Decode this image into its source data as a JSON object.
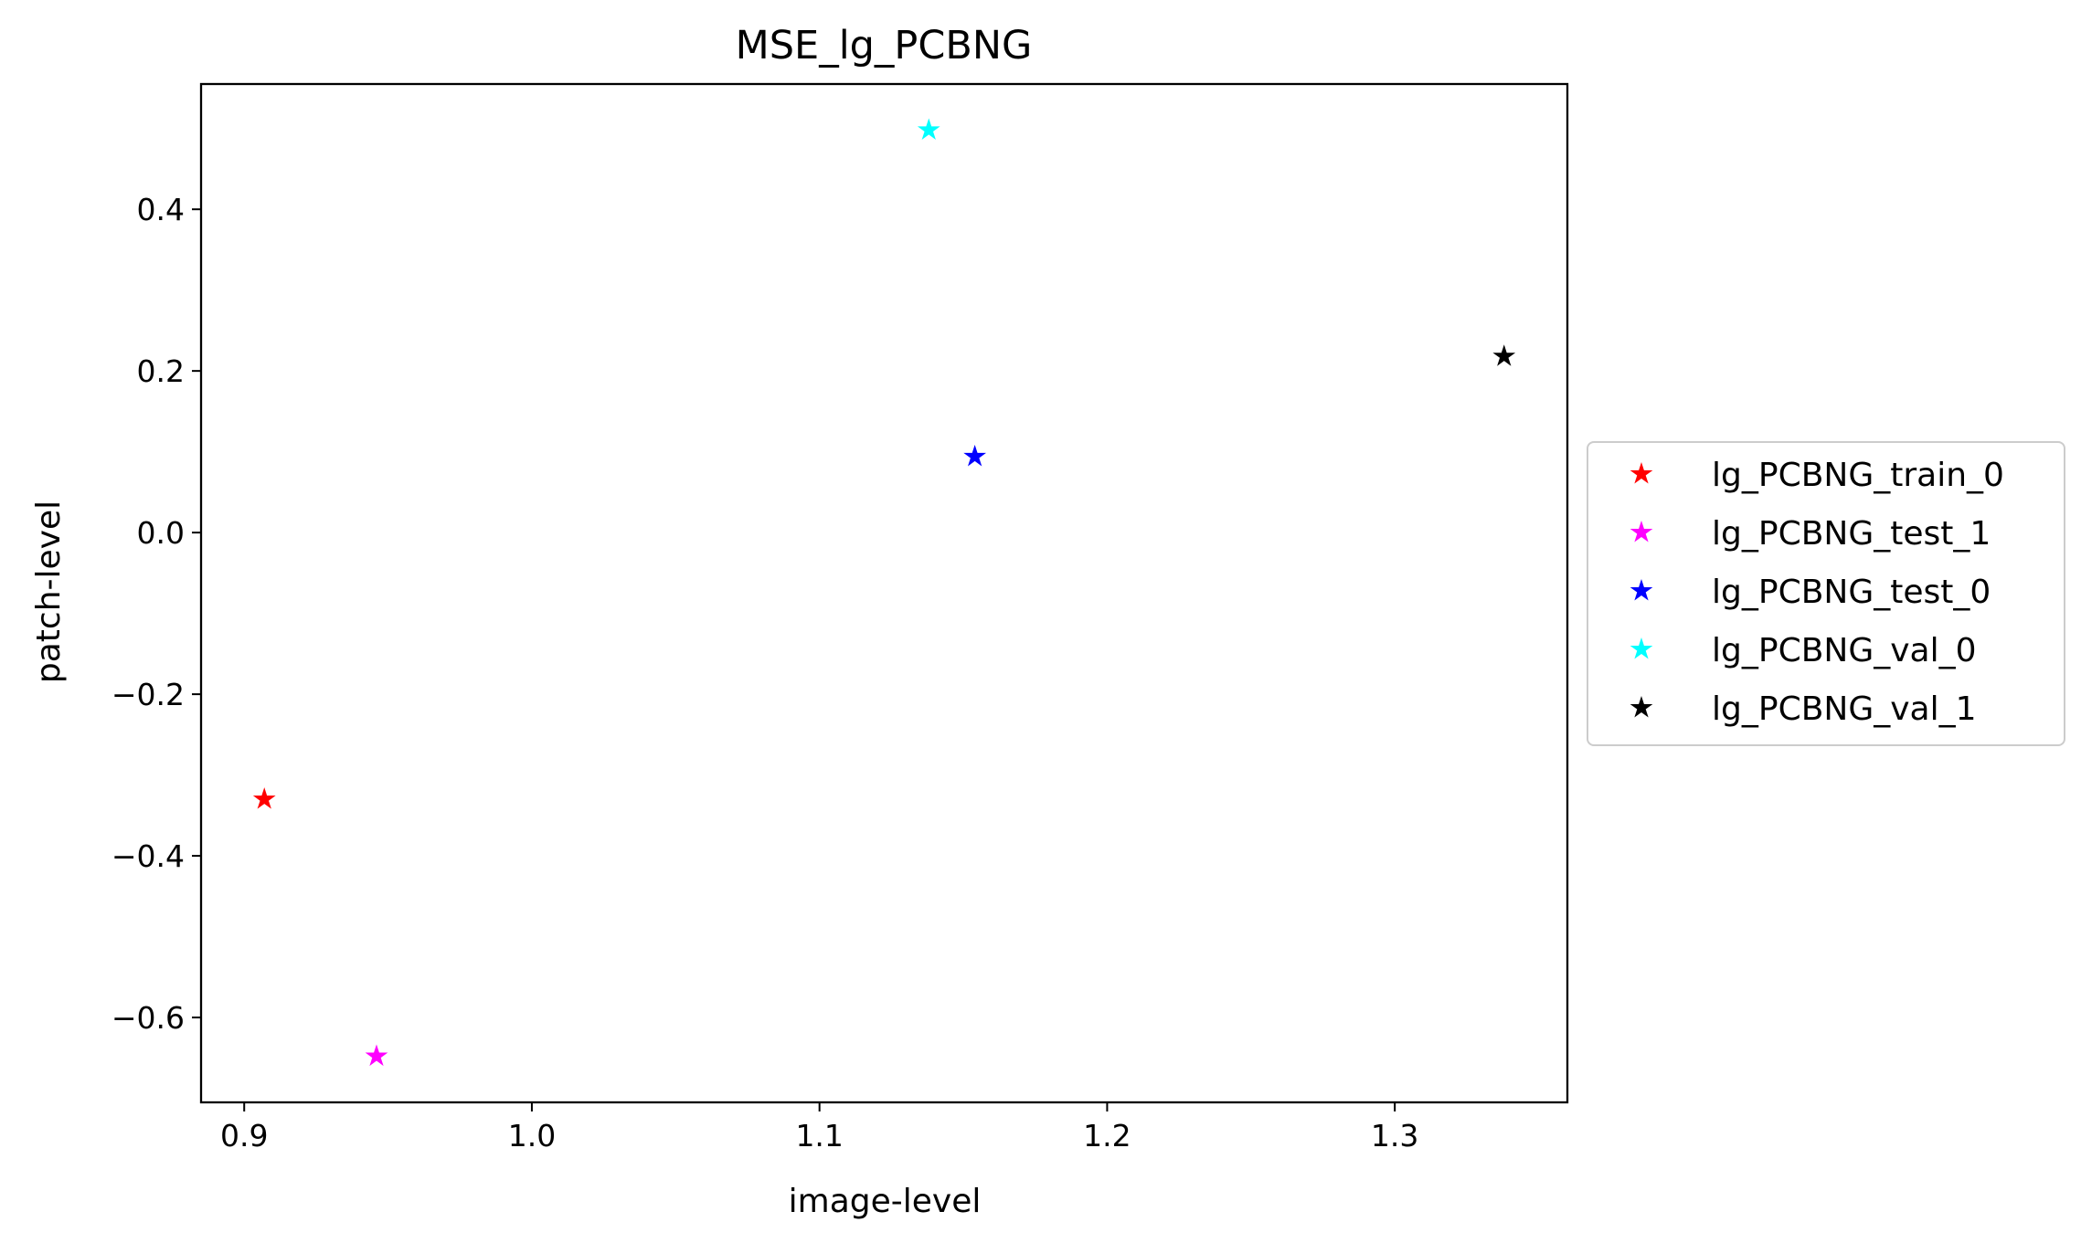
{
  "chart_data": {
    "type": "scatter",
    "title": "MSE_lg_PCBNG",
    "xlabel": "image-level",
    "ylabel": "patch-level",
    "xlim": [
      0.885,
      1.36
    ],
    "ylim": [
      -0.705,
      0.555
    ],
    "xticks": [
      0.9,
      1.0,
      1.1,
      1.2,
      1.3
    ],
    "xtick_labels": [
      "0.9",
      "1.0",
      "1.1",
      "1.2",
      "1.3"
    ],
    "yticks": [
      -0.6,
      -0.4,
      -0.2,
      0.0,
      0.2,
      0.4
    ],
    "ytick_labels": [
      "−0.6",
      "−0.4",
      "−0.2",
      "0.0",
      "0.2",
      "0.4"
    ],
    "grid": false,
    "marker": "star",
    "legend_position": "outside-right",
    "series": [
      {
        "name": "lg_PCBNG_train_0",
        "color": "#ff0000",
        "x": [
          0.907
        ],
        "y": [
          -0.33
        ]
      },
      {
        "name": "lg_PCBNG_test_1",
        "color": "#ff00ff",
        "x": [
          0.946
        ],
        "y": [
          -0.648
        ]
      },
      {
        "name": "lg_PCBNG_test_0",
        "color": "#0000ff",
        "x": [
          1.154
        ],
        "y": [
          0.094
        ]
      },
      {
        "name": "lg_PCBNG_val_0",
        "color": "#00ffff",
        "x": [
          1.138
        ],
        "y": [
          0.498
        ]
      },
      {
        "name": "lg_PCBNG_val_1",
        "color": "#000000",
        "x": [
          1.338
        ],
        "y": [
          0.218
        ]
      }
    ]
  }
}
